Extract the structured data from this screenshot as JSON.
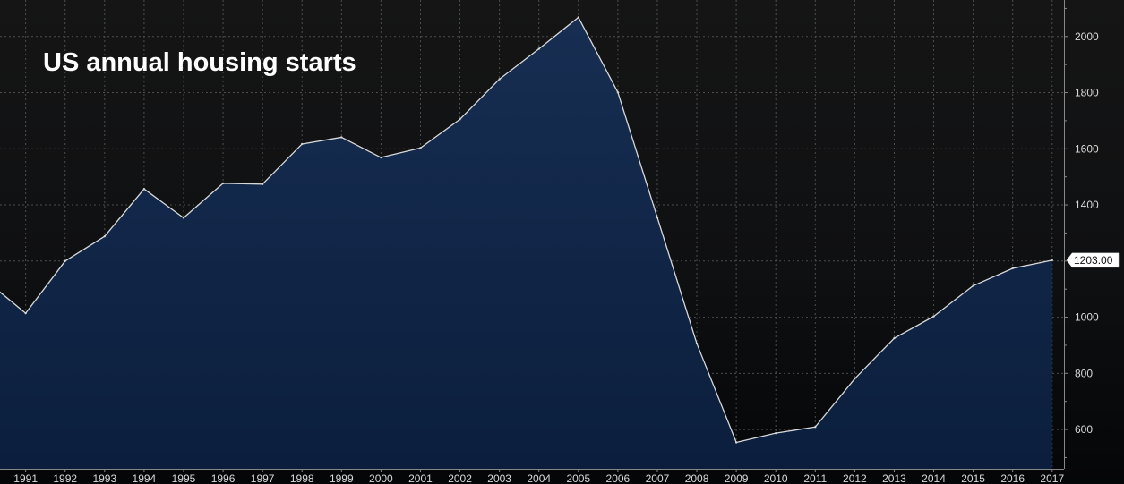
{
  "chart_data": {
    "type": "area",
    "title": "US annual housing starts",
    "xlabel": "",
    "ylabel": "",
    "x": [
      1990,
      1991,
      1992,
      1993,
      1994,
      1995,
      1996,
      1997,
      1998,
      1999,
      2000,
      2001,
      2002,
      2003,
      2004,
      2005,
      2006,
      2007,
      2008,
      2009,
      2010,
      2011,
      2012,
      2013,
      2014,
      2015,
      2016,
      2017
    ],
    "x_tick_labels": [
      "1991",
      "1992",
      "1993",
      "1994",
      "1995",
      "1996",
      "1997",
      "1998",
      "1999",
      "2000",
      "2001",
      "2002",
      "2003",
      "2004",
      "2005",
      "2006",
      "2007",
      "2008",
      "2009",
      "2010",
      "2011",
      "2012",
      "2013",
      "2014",
      "2015",
      "2016",
      "2017"
    ],
    "y_tick_labels": [
      "600",
      "800",
      "1000",
      "1200",
      "1400",
      "1600",
      "1800",
      "2000"
    ],
    "series": [
      {
        "values": [
          1130,
          1014,
          1200,
          1288,
          1457,
          1354,
          1477,
          1474,
          1617,
          1641,
          1569,
          1603,
          1705,
          1848,
          1956,
          2068,
          1801,
          1355,
          906,
          554,
          587,
          609,
          781,
          925,
          1003,
          1112,
          1174,
          1203
        ]
      }
    ],
    "last_value_label": "1203.00",
    "xlim": [
      1990.35,
      2017.3
    ],
    "ylim": [
      460,
      2130
    ],
    "y_axis_position": "right",
    "grid": true,
    "legend": "none",
    "colors": {
      "background": "#111111",
      "area_top": "#172e52",
      "area_bottom": "#0b1e3d",
      "line": "#d8d8d8",
      "grid": "#4d4d4d",
      "axis": "#888888",
      "text": "#d9d9d9",
      "label_box": "#ffffff"
    }
  }
}
